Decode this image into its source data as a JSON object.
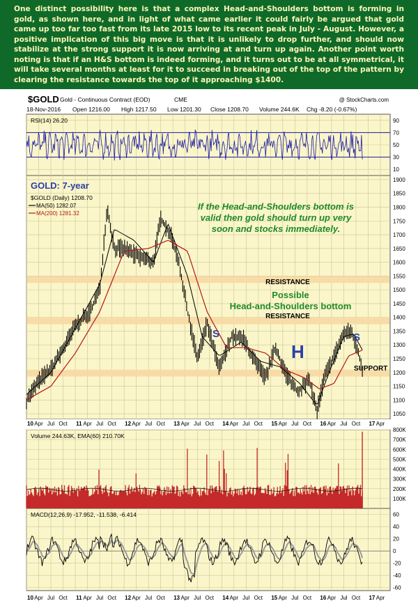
{
  "commentary": "One distinct possibility here is that a complex Head-and-Shoulders bottom is forming in gold, as shown here, and in light of what came earlier it could fairly be argued that gold came up too far too fast from its late 2015 low to its recent peak in July - August. However, a positive implication of this big move is that it is unlikely to drop further, and should now stabilize at the strong support it is now arriving at and turn up again. Another point worth noting is that if an H&S bottom is indeed forming, and it turns out to be at all symmetrical, it will take several months at least for it to succeed in breaking out of the top of the pattern by clearing the resistance towards the top of it approaching $1400.",
  "header": {
    "symbol": "$GOLD",
    "name": "Gold - Continuous Contract (EOD)",
    "exchange": "CME",
    "watermark": "@ StockCharts.com",
    "date": "18-Nov-2016",
    "open": "Open 1216.00",
    "high": "High 1217.50",
    "low": "Low 1201.30",
    "close": "Close 1208.70",
    "volume": "Volume 244.6K",
    "change": "Chg -8.20 (-0.67%)"
  },
  "colors": {
    "panel_bg": "#fbf6c9",
    "grid": "#c9c59a",
    "price": "#000000",
    "ma50": "#000000",
    "ma200": "#b01818",
    "rsi": "#1a1aa8",
    "band": "#f7d9a3",
    "volume": "#c42a2a",
    "annotation": "#1f8a2a",
    "title": "#2a3fa8"
  },
  "chart_data": [
    {
      "type": "line",
      "title": "RSI(14) 26.20",
      "ylim": [
        0,
        100
      ],
      "y_ticks": [
        10,
        30,
        50,
        70,
        90
      ],
      "reference_lines": [
        30,
        70
      ],
      "last_value": 26.2
    },
    {
      "type": "line",
      "title": "GOLD: 7-year",
      "legend": [
        "$GOLD (Daily) 1208.70",
        "MA(50) 1282.07",
        "MA(200) 1281.32"
      ],
      "legend_placement": "top-left",
      "ylim": [
        1030,
        1915
      ],
      "y_ticks": [
        1050,
        1100,
        1150,
        1200,
        1250,
        1300,
        1350,
        1400,
        1450,
        1500,
        1550,
        1600,
        1650,
        1700,
        1750,
        1800,
        1850,
        1900
      ],
      "x_axis": {
        "year_labels": [
          "10",
          "11",
          "12",
          "13",
          "14",
          "15",
          "16",
          "17"
        ],
        "month_labels": [
          "Apr",
          "Jul",
          "Oct"
        ],
        "last_month_labels": [
          "Apr",
          "Jul"
        ]
      },
      "series": [
        {
          "name": "$GOLD",
          "x": [
            2010.0,
            2010.3,
            2010.5,
            2010.8,
            2011.0,
            2011.3,
            2011.5,
            2011.65,
            2011.8,
            2012.0,
            2012.3,
            2012.6,
            2012.75,
            2012.95,
            2013.1,
            2013.3,
            2013.5,
            2013.7,
            2013.95,
            2014.2,
            2014.45,
            2014.7,
            2014.9,
            2015.1,
            2015.3,
            2015.55,
            2015.8,
            2015.95,
            2016.1,
            2016.3,
            2016.5,
            2016.65,
            2016.8,
            2016.88
          ],
          "values": [
            1100,
            1180,
            1210,
            1300,
            1370,
            1420,
            1500,
            1800,
            1650,
            1650,
            1620,
            1600,
            1760,
            1700,
            1620,
            1420,
            1250,
            1380,
            1210,
            1330,
            1320,
            1230,
            1180,
            1290,
            1200,
            1130,
            1170,
            1060,
            1180,
            1260,
            1340,
            1350,
            1270,
            1210
          ]
        },
        {
          "name": "MA(50)",
          "x": [
            2010.0,
            2010.5,
            2011.0,
            2011.5,
            2011.8,
            2012.2,
            2012.6,
            2012.9,
            2013.3,
            2013.6,
            2013.95,
            2014.4,
            2014.8,
            2015.2,
            2015.6,
            2015.95,
            2016.2,
            2016.5,
            2016.7,
            2016.88
          ],
          "values": [
            1120,
            1200,
            1360,
            1520,
            1720,
            1680,
            1600,
            1740,
            1550,
            1330,
            1260,
            1310,
            1240,
            1220,
            1160,
            1080,
            1200,
            1330,
            1340,
            1282.07
          ]
        },
        {
          "name": "MA(200)",
          "x": [
            2010.0,
            2010.5,
            2011.0,
            2011.5,
            2012.0,
            2012.5,
            2012.9,
            2013.3,
            2013.7,
            2014.1,
            2014.5,
            2014.9,
            2015.3,
            2015.7,
            2016.0,
            2016.3,
            2016.6,
            2016.88
          ],
          "values": [
            1100,
            1150,
            1270,
            1420,
            1640,
            1650,
            1680,
            1640,
            1420,
            1290,
            1290,
            1270,
            1210,
            1180,
            1140,
            1160,
            1260,
            1281.32
          ]
        }
      ],
      "annotations": [
        {
          "label": "If the Head-and-Shoulders bottom is valid then gold should turn up very soon and stocks immediately."
        },
        {
          "label": "RESISTANCE",
          "band": [
            1525,
            1550
          ]
        },
        {
          "label": "Possible Head-and-Shoulders bottom"
        },
        {
          "label": "RESISTANCE",
          "band": [
            1375,
            1400
          ]
        },
        {
          "label": "SUPPORT",
          "band": [
            1185,
            1210
          ]
        },
        {
          "label": "S"
        },
        {
          "label": "H"
        },
        {
          "label": "S"
        }
      ]
    },
    {
      "type": "bar",
      "title": "Volume 244.63K, EMA(60) 210.70K",
      "ylim": [
        0,
        800000
      ],
      "y_ticks": [
        "100K",
        "200K",
        "300K",
        "400K",
        "500K",
        "600K",
        "700K",
        "800K"
      ]
    },
    {
      "type": "line",
      "title": "MACD(12,26,9) -17.952, -11.538, -6.414",
      "ylim": [
        -65,
        70
      ],
      "y_ticks": [
        -60,
        -40,
        -20,
        0,
        20,
        40,
        60
      ],
      "last_values": [
        -17.952,
        -11.538,
        -6.414
      ]
    }
  ],
  "text": {
    "rsi_label": "RSI(14) 26.20",
    "title": "GOLD: 7-year",
    "legend": [
      "$GOLD (Daily) 1208.70",
      "MA(50) 1282.07",
      "MA(200) 1281.32"
    ],
    "annotation": [
      "If the Head-and-Shoulders bottom is",
      "valid then gold should turn up very",
      "soon and stocks immediately."
    ],
    "resistance_upper": "RESISTANCE",
    "hs_possible": "Possible",
    "hs_label": "Head-and-Shoulders bottom",
    "resistance_lower": "RESISTANCE",
    "support": "SUPPORT",
    "shoulder_left": "S",
    "head": "H",
    "shoulder_right": "S",
    "volume_label": "Volume 244.63K, EMA(60) 210.70K",
    "macd_label": "MACD(12,26,9) -17.952, -11.538, -6.414"
  }
}
